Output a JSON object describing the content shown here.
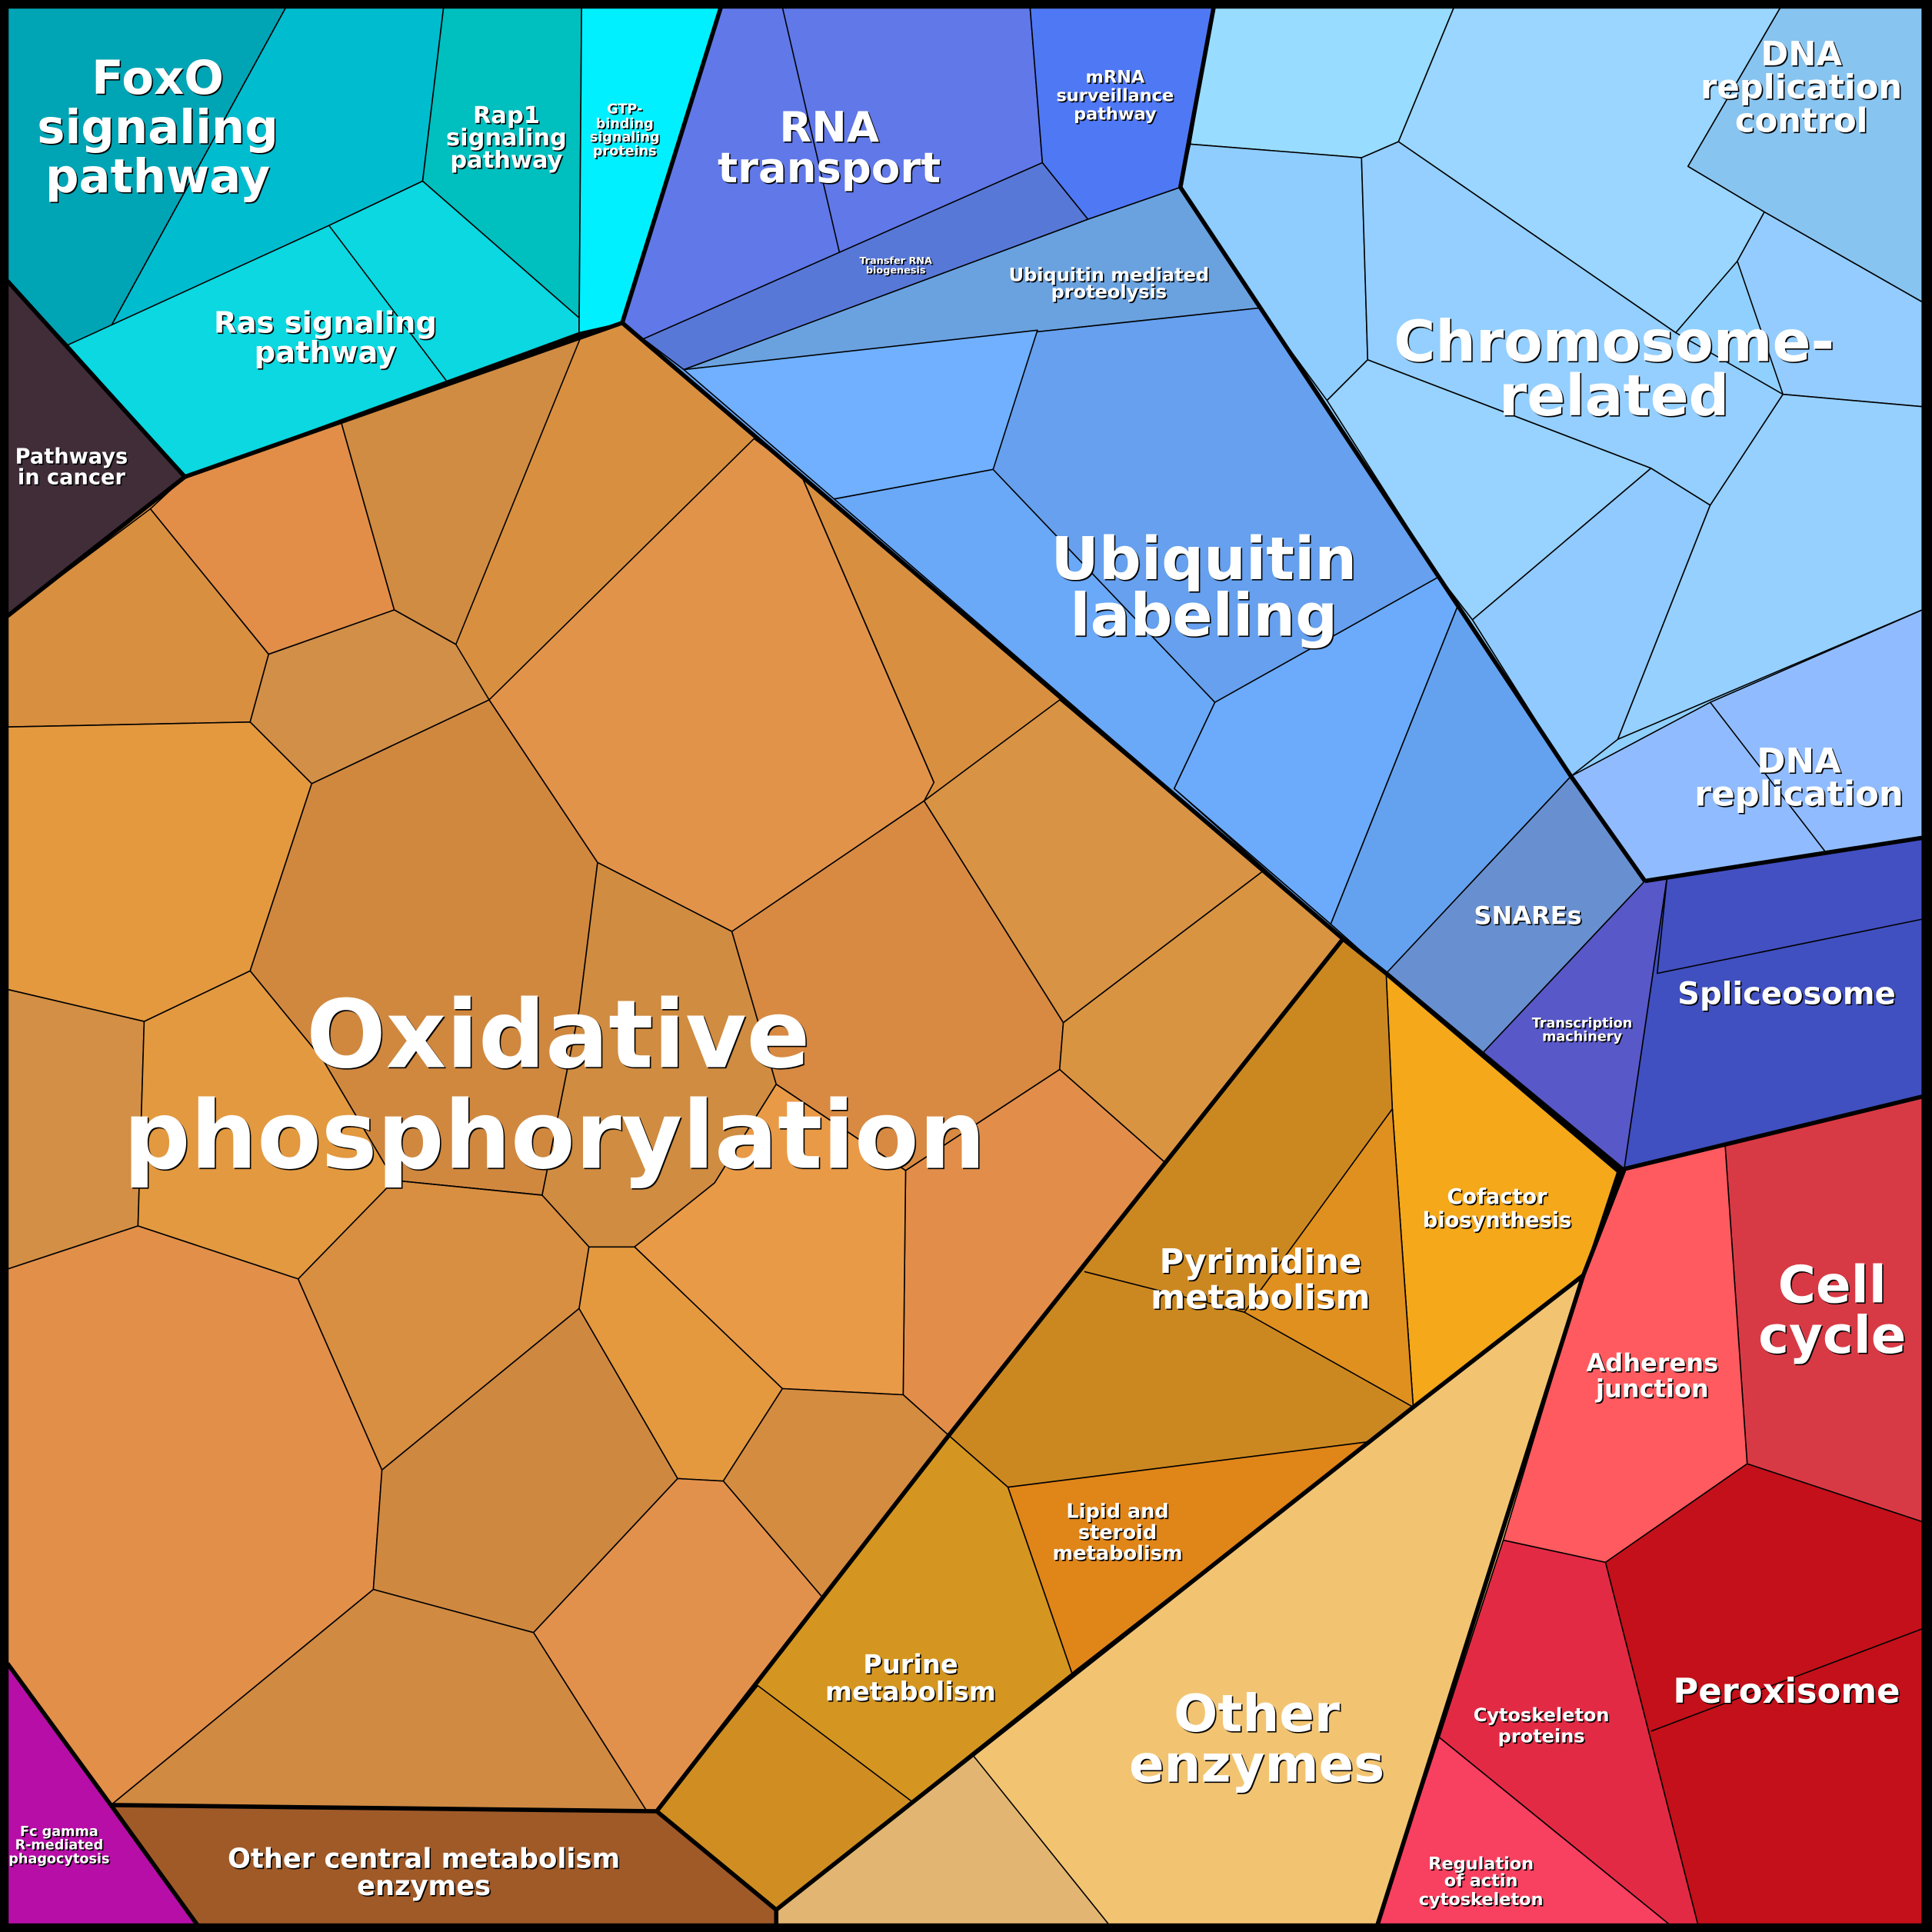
{
  "regions": {
    "foxo": {
      "label": [
        "FoxO",
        "signaling",
        "pathway"
      ],
      "color": "#00b4c8"
    },
    "rap1": {
      "label": [
        "Rap1",
        "signaling",
        "pathway"
      ],
      "color": "#00bfbf"
    },
    "gtp": {
      "label": [
        "GTP-",
        "binding",
        "signaling",
        "proteins"
      ],
      "color": "#00f0ff"
    },
    "ras": {
      "label": [
        "Ras signaling",
        "pathway"
      ],
      "color": "#0bd8e0"
    },
    "cancer": {
      "label": [
        "Pathways",
        "in cancer"
      ],
      "color": "#402d38"
    },
    "rna_transport": {
      "label": [
        "RNA",
        "transport"
      ],
      "color": "#6078e8"
    },
    "trna": {
      "label": [
        "Transfer RNA",
        "biogenesis"
      ],
      "color": "#5878d8"
    },
    "mrna": {
      "label": [
        "mRNA",
        "surveillance",
        "pathway"
      ],
      "color": "#4f78f5"
    },
    "ubq_prot": {
      "label": [
        "Ubiquitin mediated",
        "proteolysis"
      ],
      "color": "#6aa2e0"
    },
    "ubq": {
      "label": [
        "Ubiquitin",
        "labeling"
      ],
      "color": "#66a0ee"
    },
    "chromosome": {
      "label": [
        "Chromosome-",
        "related"
      ],
      "color": "#90d0ff"
    },
    "dna_ctrl": {
      "label": [
        "DNA",
        "replication",
        "control"
      ],
      "color": "#88c4f0"
    },
    "dna_rep": {
      "label": [
        "DNA",
        "replication"
      ],
      "color": "#90bcff"
    },
    "snares": {
      "label": [
        "SNAREs"
      ],
      "color": "#6890d0"
    },
    "transcription": {
      "label": [
        "Transcription",
        "machinery"
      ],
      "color": "#5858c8"
    },
    "spliceosome": {
      "label": [
        "Spliceosome"
      ],
      "color": "#4050c0"
    },
    "cell_cycle": {
      "label": [
        "Cell",
        "cycle"
      ],
      "color": "#d83a45"
    },
    "adherens": {
      "label": [
        "Adherens",
        "junction"
      ],
      "color": "#ff5a5f"
    },
    "peroxisome": {
      "label": [
        "Peroxisome"
      ],
      "color": "#c4101a"
    },
    "cytoskeleton": {
      "label": [
        "Cytoskeleton",
        "proteins"
      ],
      "color": "#e32a45"
    },
    "actin": {
      "label": [
        "Regulation",
        "of actin",
        "cytoskeleton"
      ],
      "color": "#f84060"
    },
    "cofactor": {
      "label": [
        "Cofactor",
        "biosynthesis"
      ],
      "color": "#f4a81a"
    },
    "pyrimidine": {
      "label": [
        "Pyrimidine",
        "metabolism"
      ],
      "color": "#cc8820"
    },
    "lipid": {
      "label": [
        "Lipid and",
        "steroid",
        "metabolism"
      ],
      "color": "#e08518"
    },
    "purine": {
      "label": [
        "Purine",
        "metabolism"
      ],
      "color": "#d49620"
    },
    "other_enz": {
      "label": [
        "Other",
        "enzymes"
      ],
      "color": "#f2c472"
    },
    "central": {
      "label": [
        "Other central metabolism",
        "enzymes"
      ],
      "color": "#a05a28"
    },
    "fc": {
      "label": [
        "Fc gamma",
        "R-mediated",
        "phagocytosis"
      ],
      "color": "#b80ea8"
    },
    "oxphos": {
      "label": [
        "Oxidative",
        "phosphorylation"
      ],
      "color": "#d89040"
    }
  }
}
